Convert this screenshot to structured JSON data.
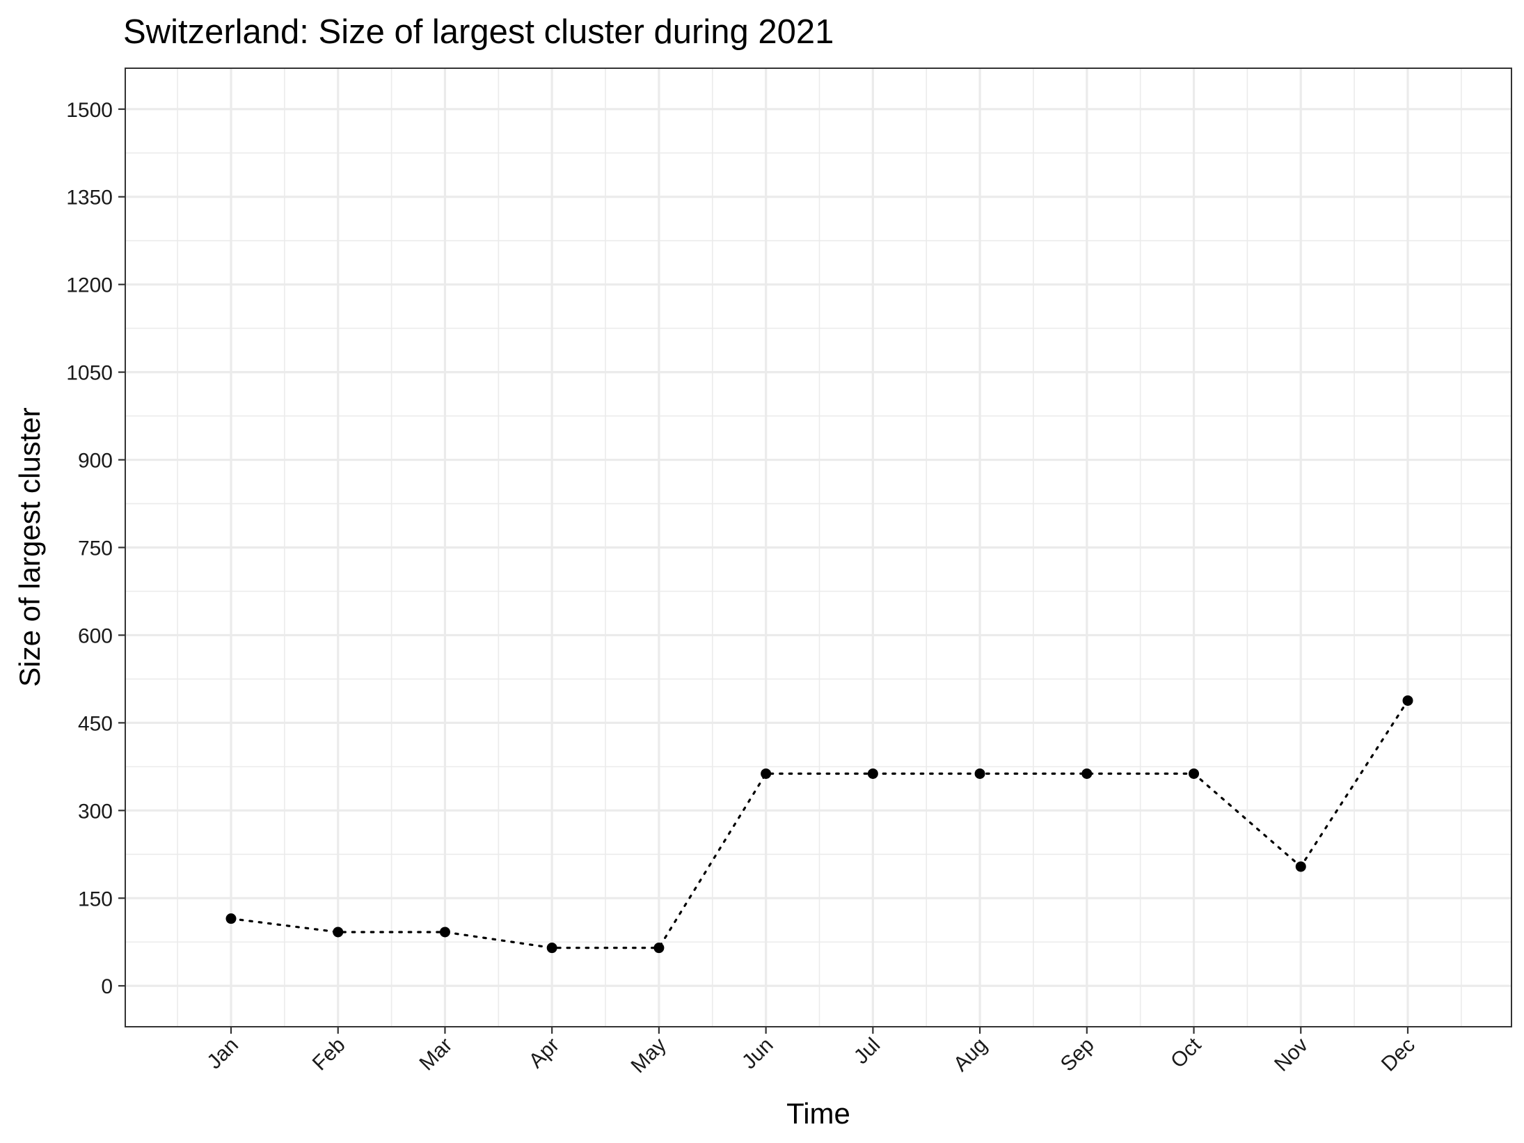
{
  "chart_data": {
    "type": "line",
    "title": "Switzerland: Size of largest cluster during 2021",
    "xlabel": "Time",
    "ylabel": "Size of largest cluster",
    "categories": [
      "Jan",
      "Feb",
      "Mar",
      "Apr",
      "May",
      "Jun",
      "Jul",
      "Aug",
      "Sep",
      "Oct",
      "Nov",
      "Dec"
    ],
    "series": [
      {
        "values": [
          115,
          92,
          92,
          65,
          65,
          363,
          363,
          363,
          363,
          363,
          204,
          488
        ]
      }
    ],
    "ylim": [
      -70,
      1570
    ],
    "yticks": [
      0,
      150,
      300,
      450,
      600,
      750,
      900,
      1050,
      1200,
      1350,
      1500
    ],
    "ytick_labels": [
      "0",
      "150",
      "300",
      "450",
      "600",
      "750",
      "900",
      "1050",
      "1200",
      "1350",
      "1500"
    ],
    "grid": true,
    "line_style": "dotted",
    "marker": "circle",
    "colors": {
      "line": "#000000",
      "grid": "#ebebeb",
      "border": "#333333",
      "background": "#ffffff"
    }
  }
}
